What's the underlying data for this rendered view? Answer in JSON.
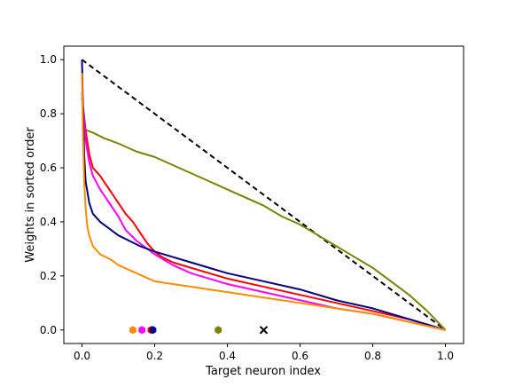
{
  "chart_data": {
    "type": "line",
    "title": "",
    "xlabel": "Target neuron index",
    "ylabel": "Weights in sorted order",
    "xlim": [
      -0.05,
      1.05
    ],
    "ylim": [
      -0.05,
      1.05
    ],
    "xticks": [
      0.0,
      0.2,
      0.4,
      0.6,
      0.8,
      1.0
    ],
    "yticks": [
      0.0,
      0.2,
      0.4,
      0.6,
      0.8,
      1.0
    ],
    "xtick_labels": [
      "0.0",
      "0.2",
      "0.4",
      "0.6",
      "0.8",
      "1.0"
    ],
    "ytick_labels": [
      "0.0",
      "0.2",
      "0.4",
      "0.6",
      "0.8",
      "1.0"
    ],
    "grid": false,
    "legend": "none",
    "series": [
      {
        "color": "#000000",
        "dash": "dashed",
        "x": [
          0.0,
          1.0
        ],
        "y": [
          1.0,
          0.0
        ]
      },
      {
        "color": "#808000",
        "x": [
          0.0,
          0.01,
          0.03,
          0.06,
          0.1,
          0.15,
          0.2,
          0.25,
          0.3,
          0.35,
          0.4,
          0.45,
          0.5,
          0.55,
          0.6,
          0.65,
          0.7,
          0.75,
          0.8,
          0.85,
          0.9,
          0.95,
          1.0
        ],
        "y": [
          0.75,
          0.74,
          0.73,
          0.71,
          0.69,
          0.66,
          0.64,
          0.61,
          0.58,
          0.55,
          0.52,
          0.49,
          0.46,
          0.42,
          0.39,
          0.35,
          0.31,
          0.27,
          0.23,
          0.18,
          0.13,
          0.07,
          0.0
        ]
      },
      {
        "color": "#ff0000",
        "x": [
          0.0,
          0.005,
          0.01,
          0.02,
          0.03,
          0.05,
          0.07,
          0.1,
          0.12,
          0.14,
          0.16,
          0.18,
          0.2,
          0.22,
          0.25,
          0.3,
          0.35,
          0.4,
          0.5,
          0.6,
          0.7,
          0.8,
          0.9,
          1.0
        ],
        "y": [
          0.86,
          0.8,
          0.74,
          0.65,
          0.6,
          0.57,
          0.53,
          0.47,
          0.43,
          0.4,
          0.36,
          0.32,
          0.29,
          0.27,
          0.25,
          0.23,
          0.21,
          0.19,
          0.16,
          0.13,
          0.1,
          0.07,
          0.04,
          0.0
        ]
      },
      {
        "color": "#ff00ff",
        "x": [
          0.0,
          0.005,
          0.01,
          0.02,
          0.03,
          0.05,
          0.07,
          0.1,
          0.12,
          0.15,
          0.18,
          0.2,
          0.25,
          0.3,
          0.35,
          0.4,
          0.5,
          0.6,
          0.7,
          0.8,
          0.9,
          1.0
        ],
        "y": [
          0.88,
          0.78,
          0.7,
          0.62,
          0.57,
          0.52,
          0.48,
          0.42,
          0.37,
          0.33,
          0.3,
          0.28,
          0.24,
          0.21,
          0.19,
          0.17,
          0.14,
          0.11,
          0.08,
          0.06,
          0.03,
          0.0
        ]
      },
      {
        "color": "#000080",
        "x": [
          0.0,
          0.003,
          0.006,
          0.01,
          0.02,
          0.03,
          0.05,
          0.08,
          0.1,
          0.13,
          0.16,
          0.2,
          0.25,
          0.3,
          0.35,
          0.4,
          0.5,
          0.6,
          0.7,
          0.8,
          0.9,
          1.0
        ],
        "y": [
          1.0,
          0.8,
          0.65,
          0.55,
          0.47,
          0.43,
          0.4,
          0.37,
          0.35,
          0.33,
          0.31,
          0.29,
          0.27,
          0.25,
          0.23,
          0.21,
          0.18,
          0.15,
          0.11,
          0.08,
          0.04,
          0.0
        ]
      },
      {
        "color": "#ff8c00",
        "x": [
          0.0,
          0.003,
          0.006,
          0.01,
          0.015,
          0.02,
          0.03,
          0.05,
          0.08,
          0.1,
          0.15,
          0.2,
          0.25,
          0.3,
          0.35,
          0.4,
          0.5,
          0.6,
          0.7,
          0.8,
          0.9,
          1.0
        ],
        "y": [
          0.95,
          0.7,
          0.55,
          0.45,
          0.38,
          0.35,
          0.31,
          0.28,
          0.26,
          0.24,
          0.21,
          0.18,
          0.17,
          0.16,
          0.15,
          0.14,
          0.12,
          0.1,
          0.08,
          0.06,
          0.03,
          0.0
        ]
      }
    ],
    "markers": [
      {
        "shape": "hexagon",
        "color": "#ff8c00",
        "x": 0.14,
        "y": 0.0
      },
      {
        "shape": "hexagon",
        "color": "#ff00ff",
        "x": 0.165,
        "y": 0.0
      },
      {
        "shape": "hexagon",
        "color": "#ff0000",
        "x": 0.19,
        "y": 0.0
      },
      {
        "shape": "hexagon",
        "color": "#000080",
        "x": 0.195,
        "y": 0.0
      },
      {
        "shape": "hexagon",
        "color": "#808000",
        "x": 0.375,
        "y": 0.0
      },
      {
        "shape": "x",
        "color": "#000000",
        "x": 0.5,
        "y": 0.0
      }
    ]
  }
}
